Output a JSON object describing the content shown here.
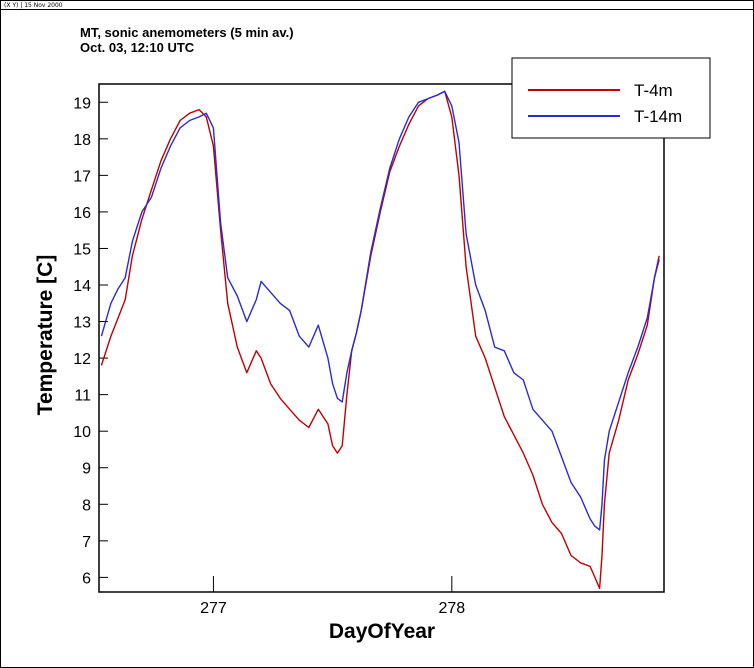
{
  "window": {
    "header_text": "(X Y)  |  15 Nov 2000"
  },
  "chart_data": {
    "type": "line",
    "title": "MT, sonic anemometers (5 min av.)",
    "subtitle": "Oct. 03, 12:10 UTC",
    "xlabel": "DayOfYear",
    "ylabel": "Temperature [C]",
    "xlim": [
      276.52,
      278.89
    ],
    "ylim": [
      5.6,
      19.5
    ],
    "x_ticks": [
      277,
      278
    ],
    "y_ticks": [
      6,
      7,
      8,
      9,
      10,
      11,
      12,
      13,
      14,
      15,
      16,
      17,
      18,
      19
    ],
    "legend_position": "top-right",
    "grid": false,
    "series": [
      {
        "name": "T-4m",
        "color": "#c00000",
        "x": [
          276.53,
          276.57,
          276.6,
          276.63,
          276.66,
          276.7,
          276.74,
          276.78,
          276.82,
          276.86,
          276.9,
          276.94,
          276.97,
          277.0,
          277.03,
          277.06,
          277.1,
          277.14,
          277.18,
          277.2,
          277.24,
          277.28,
          277.32,
          277.36,
          277.4,
          277.44,
          277.48,
          277.5,
          277.52,
          277.54,
          277.56,
          277.58,
          277.6,
          277.62,
          277.66,
          277.7,
          277.74,
          277.78,
          277.82,
          277.86,
          277.9,
          277.94,
          277.97,
          278.0,
          278.03,
          278.06,
          278.1,
          278.14,
          278.18,
          278.22,
          278.26,
          278.3,
          278.34,
          278.38,
          278.42,
          278.46,
          278.5,
          278.54,
          278.58,
          278.6,
          278.62,
          278.63,
          278.64,
          278.66,
          278.7,
          278.74,
          278.78,
          278.82,
          278.85,
          278.87
        ],
        "values": [
          11.8,
          12.6,
          13.1,
          13.6,
          14.8,
          15.8,
          16.6,
          17.4,
          18.0,
          18.5,
          18.7,
          18.8,
          18.6,
          17.8,
          15.5,
          13.5,
          12.3,
          11.6,
          12.2,
          12.0,
          11.3,
          10.9,
          10.6,
          10.3,
          10.1,
          10.6,
          10.2,
          9.6,
          9.4,
          9.6,
          11.0,
          12.2,
          12.7,
          13.3,
          14.8,
          16.0,
          17.1,
          17.8,
          18.4,
          18.9,
          19.1,
          19.2,
          19.3,
          18.6,
          17.0,
          14.5,
          12.6,
          12.0,
          11.2,
          10.4,
          9.9,
          9.4,
          8.8,
          8.0,
          7.5,
          7.2,
          6.6,
          6.4,
          6.3,
          6.0,
          5.7,
          6.6,
          8.0,
          9.4,
          10.3,
          11.4,
          12.1,
          12.9,
          14.2,
          14.8
        ]
      },
      {
        "name": "T-14m",
        "color": "#2a2ad8",
        "x": [
          276.53,
          276.57,
          276.6,
          276.63,
          276.66,
          276.7,
          276.74,
          276.78,
          276.82,
          276.86,
          276.9,
          276.94,
          276.97,
          277.0,
          277.03,
          277.06,
          277.1,
          277.14,
          277.18,
          277.2,
          277.24,
          277.28,
          277.32,
          277.36,
          277.4,
          277.44,
          277.48,
          277.5,
          277.52,
          277.54,
          277.56,
          277.58,
          277.6,
          277.62,
          277.66,
          277.7,
          277.74,
          277.78,
          277.82,
          277.86,
          277.9,
          277.94,
          277.97,
          278.0,
          278.03,
          278.06,
          278.1,
          278.14,
          278.18,
          278.22,
          278.26,
          278.3,
          278.34,
          278.38,
          278.42,
          278.46,
          278.5,
          278.54,
          278.58,
          278.6,
          278.62,
          278.63,
          278.64,
          278.66,
          278.7,
          278.74,
          278.78,
          278.82,
          278.85,
          278.87
        ],
        "values": [
          12.6,
          13.5,
          13.9,
          14.2,
          15.2,
          16.0,
          16.4,
          17.2,
          17.8,
          18.3,
          18.5,
          18.6,
          18.7,
          18.3,
          15.7,
          14.2,
          13.7,
          13.0,
          13.6,
          14.1,
          13.8,
          13.5,
          13.3,
          12.6,
          12.3,
          12.9,
          12.0,
          11.3,
          10.9,
          10.8,
          11.6,
          12.2,
          12.7,
          13.3,
          14.9,
          16.1,
          17.2,
          18.0,
          18.6,
          19.0,
          19.1,
          19.2,
          19.3,
          18.9,
          17.9,
          15.4,
          14.0,
          13.3,
          12.3,
          12.2,
          11.6,
          11.4,
          10.6,
          10.3,
          10.0,
          9.3,
          8.6,
          8.2,
          7.6,
          7.4,
          7.3,
          8.0,
          9.2,
          10.0,
          10.8,
          11.6,
          12.3,
          13.1,
          14.2,
          14.7
        ]
      }
    ]
  }
}
